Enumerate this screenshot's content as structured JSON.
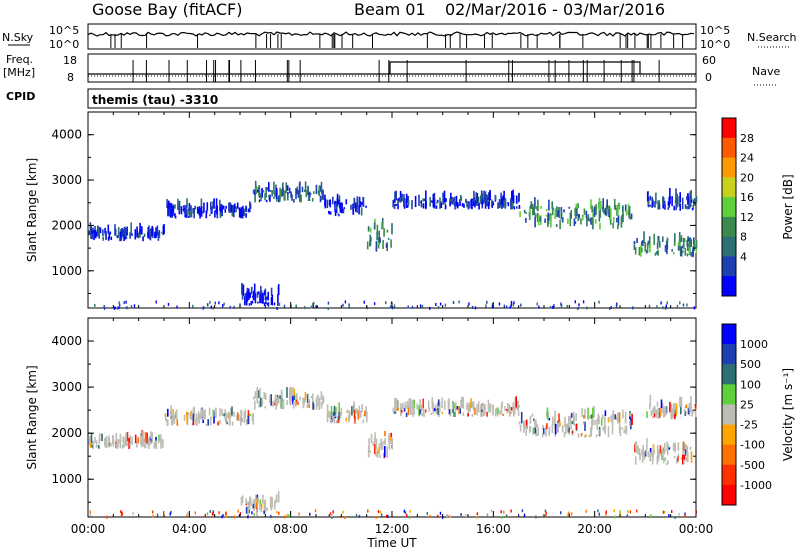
{
  "header": {
    "station": "Goose Bay (fitACF)",
    "beam": "Beam 01",
    "date_range": "02/Mar/2016 - 03/Mar/2016"
  },
  "strip_panels": {
    "nsky_label": "N.Sky",
    "nsky_ticks": [
      "10^5",
      "10^0"
    ],
    "nsearch_label": "N.Search",
    "freq_label": "Freq.",
    "freq_unit": "[MHz]",
    "freq_ticks": [
      "18",
      "8"
    ],
    "nave_label": "Nave",
    "nave_ticks": [
      "60",
      "0"
    ],
    "cpid_label": "CPID",
    "cpid_value": "themis (tau) -3310"
  },
  "colors": {
    "power_scale": [
      "#0000ff",
      "#1f3fb0",
      "#2e6f73",
      "#3a8a4f",
      "#5fd03a",
      "#c8d21e",
      "#ff9900",
      "#ff5a00",
      "#ff0000"
    ],
    "velocity_scale": [
      "#0000ff",
      "#1f3fb0",
      "#2e6f73",
      "#5fd03a",
      "#bdbdb5",
      "#ffa500",
      "#ff7000",
      "#ff3000",
      "#ff0000"
    ],
    "ground_scatter": "#bdbdb5"
  },
  "chart_data": [
    {
      "type": "heatmap",
      "name": "power",
      "ylabel": "Slant Range [km]",
      "yticks": [
        "1000",
        "2000",
        "3000",
        "4000"
      ],
      "ylim": [
        180,
        4500
      ],
      "xlim": [
        0,
        24
      ],
      "colorbar": {
        "label": "Power [dB]",
        "ticks": [
          "4",
          "8",
          "12",
          "16",
          "20",
          "24",
          "28"
        ],
        "range": [
          0,
          32
        ]
      },
      "echo_bands": [
        {
          "t0": 0.0,
          "t1": 3.0,
          "r0": 1650,
          "r1": 1950,
          "level": 6
        },
        {
          "t0": 3.0,
          "t1": 6.5,
          "r0": 2150,
          "r1": 2550,
          "level": 6
        },
        {
          "t0": 6.5,
          "t1": 9.3,
          "r0": 2500,
          "r1": 2950,
          "level": 10
        },
        {
          "t0": 9.3,
          "t1": 11.0,
          "r0": 2200,
          "r1": 2650,
          "level": 6
        },
        {
          "t0": 11.0,
          "t1": 12.0,
          "r0": 1400,
          "r1": 2300,
          "level": 14
        },
        {
          "t0": 12.0,
          "t1": 17.0,
          "r0": 2350,
          "r1": 2700,
          "level": 6
        },
        {
          "t0": 17.0,
          "t1": 21.5,
          "r0": 1900,
          "r1": 2700,
          "level": 14
        },
        {
          "t0": 21.5,
          "t1": 24.0,
          "r0": 1300,
          "r1": 1900,
          "level": 14
        },
        {
          "t0": 22.0,
          "t1": 24.0,
          "r0": 2300,
          "r1": 2800,
          "level": 8
        },
        {
          "t0": 6.0,
          "t1": 7.5,
          "r0": 200,
          "r1": 700,
          "level": 4
        }
      ]
    },
    {
      "type": "heatmap",
      "name": "velocity",
      "ylabel": "Slant Range [km]",
      "yticks": [
        "1000",
        "2000",
        "3000",
        "4000"
      ],
      "ylim": [
        180,
        4500
      ],
      "xlim": [
        0,
        24
      ],
      "xlabel": "Time UT",
      "xticks": [
        "00:00",
        "04:00",
        "08:00",
        "12:00",
        "16:00",
        "20:00",
        "00:00"
      ],
      "colorbar": {
        "label": "Velocity [m s^-1]",
        "ticks": [
          "1000",
          "500",
          "100",
          "25",
          "-25",
          "-100",
          "-500",
          "-1000"
        ],
        "range": [
          -1000,
          1000
        ]
      }
    }
  ]
}
